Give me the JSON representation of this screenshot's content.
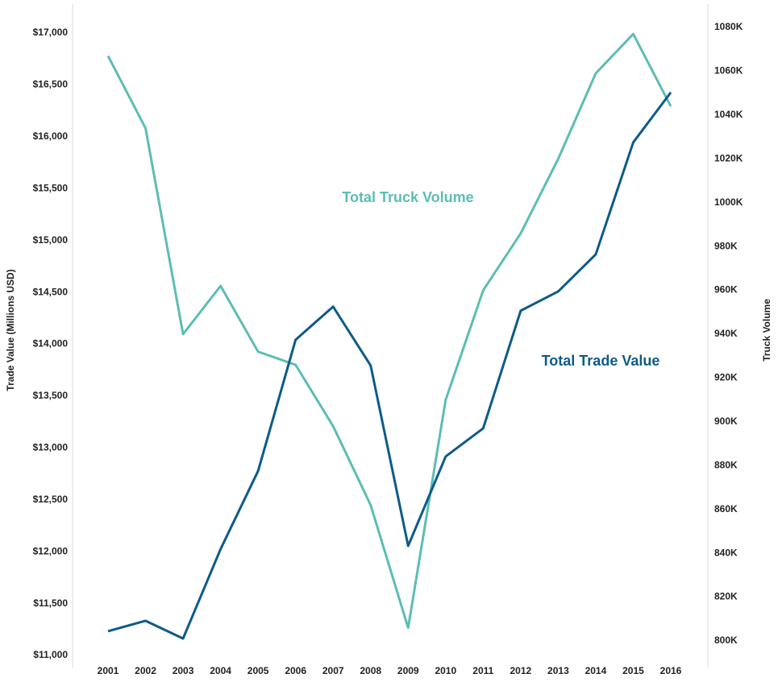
{
  "chart_data": {
    "type": "line",
    "y_label": "Trade Value (Millions USD)",
    "y2_label": "Truck Volume",
    "x": [
      2001,
      2002,
      2003,
      2004,
      2005,
      2006,
      2007,
      2008,
      2009,
      2010,
      2011,
      2012,
      2013,
      2014,
      2015,
      2016
    ],
    "xticks": [
      2001,
      2002,
      2003,
      2004,
      2005,
      2006,
      2007,
      2008,
      2009,
      2010,
      2011,
      2012,
      2013,
      2014,
      2015,
      2016
    ],
    "xlim": [
      2001,
      2016
    ],
    "series": [
      {
        "name": "Total Truck Volume",
        "color": "#5cbdb5",
        "axis": "y2",
        "values": [
          1067000,
          1034000,
          940000,
          962000,
          932000,
          926000,
          898000,
          862000,
          806000,
          910000,
          960000,
          986000,
          1020000,
          1059000,
          1077000,
          1044000
        ]
      },
      {
        "name": "Total Trade Value",
        "color": "#0d5b88",
        "values": [
          11233,
          11334,
          11163,
          12025,
          12778,
          14043,
          14362,
          13795,
          12056,
          12918,
          13189,
          14323,
          14509,
          14866,
          15946,
          16427
        ]
      }
    ],
    "ylim": [
      11000,
      17000
    ],
    "yticks": [
      {
        "value": 11000,
        "label": "$11,000"
      },
      {
        "value": 11500,
        "label": "$11,500"
      },
      {
        "value": 12000,
        "label": "$12,000"
      },
      {
        "value": 12500,
        "label": "$12,500"
      },
      {
        "value": 13000,
        "label": "$13,000"
      },
      {
        "value": 13500,
        "label": "$13,500"
      },
      {
        "value": 14000,
        "label": "$14,000"
      },
      {
        "value": 14500,
        "label": "$14,500"
      },
      {
        "value": 15000,
        "label": "$15,000"
      },
      {
        "value": 15500,
        "label": "$15,500"
      },
      {
        "value": 16000,
        "label": "$16,000"
      },
      {
        "value": 16500,
        "label": "$16,500"
      },
      {
        "value": 17000,
        "label": "$17,000"
      }
    ],
    "y2lim": [
      800000,
      1080000
    ],
    "y2ticks": [
      {
        "value": 800000,
        "label": "800K"
      },
      {
        "value": 820000,
        "label": "820K"
      },
      {
        "value": 840000,
        "label": "840K"
      },
      {
        "value": 860000,
        "label": "860K"
      },
      {
        "value": 880000,
        "label": "880K"
      },
      {
        "value": 900000,
        "label": "900K"
      },
      {
        "value": 920000,
        "label": "920K"
      },
      {
        "value": 940000,
        "label": "940K"
      },
      {
        "value": 960000,
        "label": "960K"
      },
      {
        "value": 980000,
        "label": "980K"
      },
      {
        "value": 1000000,
        "label": "1000K"
      },
      {
        "value": 1020000,
        "label": "1020K"
      },
      {
        "value": 1040000,
        "label": "1040K"
      },
      {
        "value": 1060000,
        "label": "1060K"
      },
      {
        "value": 1080000,
        "label": "1080K"
      }
    ],
    "grid": false
  }
}
